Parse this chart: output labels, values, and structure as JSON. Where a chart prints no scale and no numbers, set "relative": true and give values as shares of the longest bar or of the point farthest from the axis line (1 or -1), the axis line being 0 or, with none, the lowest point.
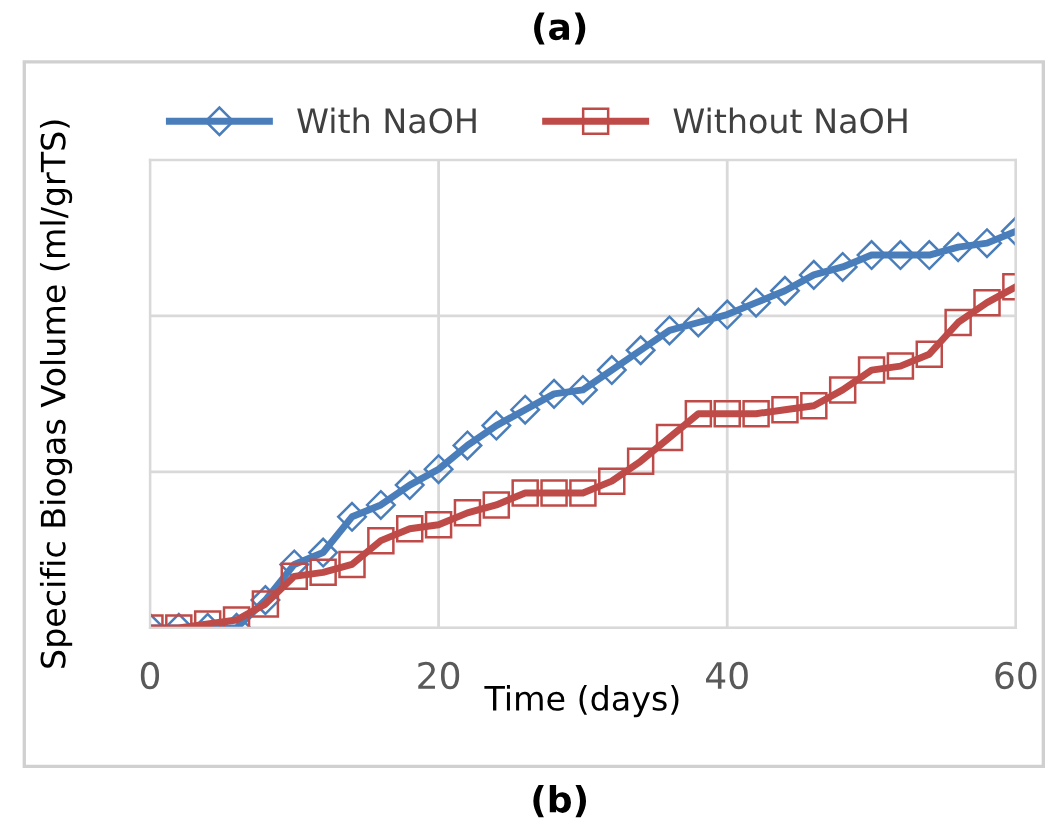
{
  "chart_data": {
    "type": "line",
    "relative": true,
    "xlabel": "Time (days)",
    "ylabel": "Specific Biogas Volume (ml/grTS)",
    "annotations": [
      "(a)",
      "(b)"
    ],
    "x": [
      0,
      2,
      4,
      6,
      8,
      10,
      12,
      14,
      16,
      18,
      20,
      22,
      24,
      26,
      28,
      30,
      32,
      34,
      36,
      38,
      40,
      42,
      44,
      46,
      48,
      50,
      52,
      54,
      56,
      58,
      60
    ],
    "xlim": [
      0,
      60
    ],
    "xticks": [
      0,
      20,
      40,
      60
    ],
    "grid": true,
    "legend": "top",
    "line_style": "solid",
    "series": [
      {
        "name": "With NaOH",
        "color": "#4a7ebb",
        "marker": "diamond",
        "values": [
          0,
          0,
          0,
          0,
          0.07,
          0.16,
          0.19,
          0.28,
          0.31,
          0.36,
          0.4,
          0.46,
          0.51,
          0.55,
          0.59,
          0.6,
          0.65,
          0.7,
          0.75,
          0.77,
          0.79,
          0.82,
          0.85,
          0.89,
          0.91,
          0.94,
          0.94,
          0.94,
          0.96,
          0.97,
          1
        ]
      },
      {
        "name": "Without NaOH",
        "color": "#be4b48",
        "marker": "square",
        "values": [
          0,
          0,
          0.01,
          0.02,
          0.06,
          0.13,
          0.14,
          0.16,
          0.22,
          0.25,
          0.26,
          0.29,
          0.31,
          0.34,
          0.34,
          0.34,
          0.37,
          0.42,
          0.48,
          0.54,
          0.54,
          0.54,
          0.55,
          0.56,
          0.6,
          0.65,
          0.66,
          0.69,
          0.77,
          0.82,
          0.86
        ]
      }
    ]
  }
}
